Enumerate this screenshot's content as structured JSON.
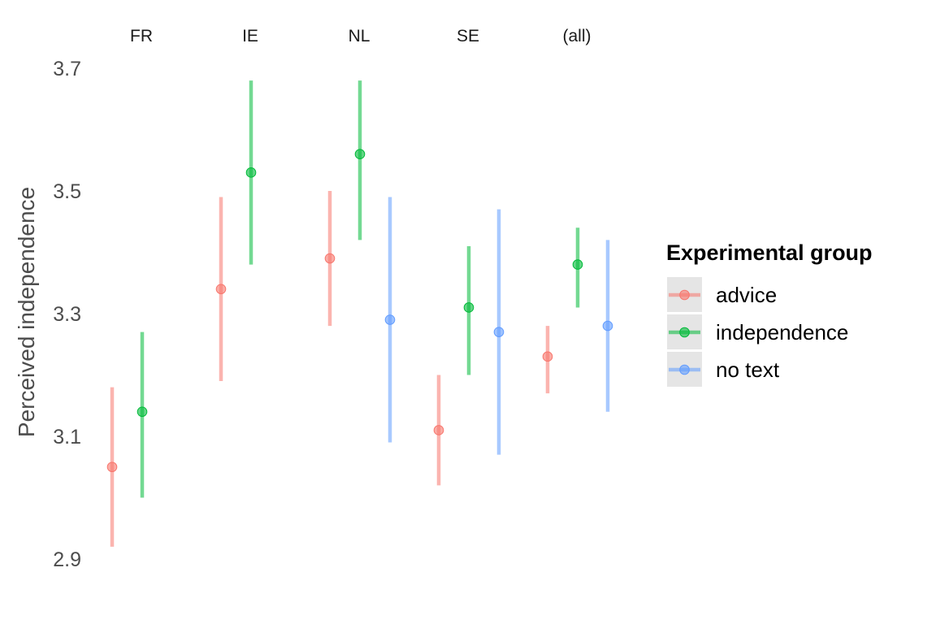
{
  "chart_data": {
    "type": "scatter",
    "ylabel": "Perceived independence",
    "ylim": [
      2.9,
      3.7
    ],
    "y_ticks": [
      "2.9",
      "3.1",
      "3.3",
      "3.5",
      "3.7"
    ],
    "facets": [
      "FR",
      "IE",
      "NL",
      "SE",
      "(all)"
    ],
    "grid": false,
    "legend": {
      "title": "Experimental group",
      "placement": "right",
      "entries": [
        "advice",
        "independence",
        "no text"
      ]
    },
    "series": [
      {
        "name": "advice",
        "color": "#F8766D",
        "points": [
          {
            "facet": "FR",
            "y": 3.05,
            "low": 2.92,
            "high": 3.18
          },
          {
            "facet": "IE",
            "y": 3.34,
            "low": 3.19,
            "high": 3.49
          },
          {
            "facet": "NL",
            "y": 3.39,
            "low": 3.28,
            "high": 3.5
          },
          {
            "facet": "SE",
            "y": 3.11,
            "low": 3.02,
            "high": 3.2
          },
          {
            "facet": "(all)",
            "y": 3.23,
            "low": 3.17,
            "high": 3.28
          }
        ]
      },
      {
        "name": "independence",
        "color": "#00BA38",
        "points": [
          {
            "facet": "FR",
            "y": 3.14,
            "low": 3.0,
            "high": 3.27
          },
          {
            "facet": "IE",
            "y": 3.53,
            "low": 3.38,
            "high": 3.68
          },
          {
            "facet": "NL",
            "y": 3.56,
            "low": 3.42,
            "high": 3.68
          },
          {
            "facet": "SE",
            "y": 3.31,
            "low": 3.2,
            "high": 3.41
          },
          {
            "facet": "(all)",
            "y": 3.38,
            "low": 3.31,
            "high": 3.44
          }
        ]
      },
      {
        "name": "no text",
        "color": "#619CFF",
        "points": [
          {
            "facet": "NL",
            "y": 3.29,
            "low": 3.09,
            "high": 3.49
          },
          {
            "facet": "SE",
            "y": 3.27,
            "low": 3.07,
            "high": 3.47
          },
          {
            "facet": "(all)",
            "y": 3.28,
            "low": 3.14,
            "high": 3.42
          }
        ]
      }
    ]
  }
}
